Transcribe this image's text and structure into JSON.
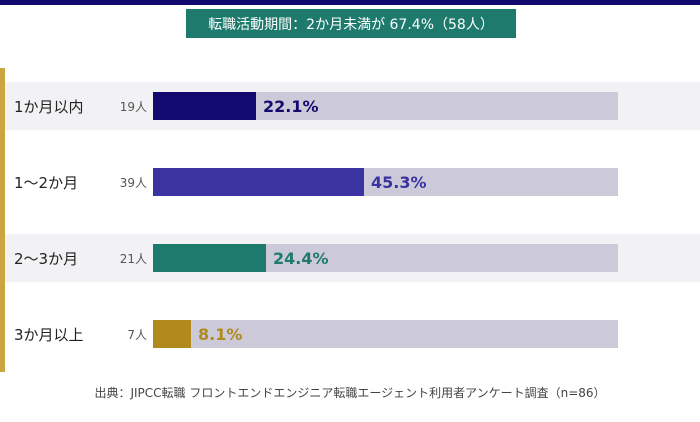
{
  "header": {
    "title": "転職活動期間：2か月未満が 67.4%（58人）"
  },
  "chart_data": {
    "type": "bar",
    "orientation": "horizontal",
    "title": "転職活動期間：2か月未満が 67.4%（58人）",
    "categories": [
      "1か月以内",
      "1〜2か月",
      "2〜3か月",
      "3か月以上"
    ],
    "counts": [
      "19人",
      "39人",
      "21人",
      "7人"
    ],
    "values": [
      22.1,
      45.3,
      24.4,
      8.1
    ],
    "value_labels": [
      "22.1%",
      "45.3%",
      "24.4%",
      "8.1%"
    ],
    "xlim": [
      0,
      100
    ],
    "colors": [
      "#120a6e",
      "#3a33a0",
      "#1e7a6d",
      "#b08a1c"
    ],
    "track_color": "#cccad9",
    "accent_color": "#c9a640"
  },
  "footer": {
    "source": "出典：JIPCC転職 フロントエンドエンジニア転職エージェント利用者アンケート調査（n=86）"
  }
}
